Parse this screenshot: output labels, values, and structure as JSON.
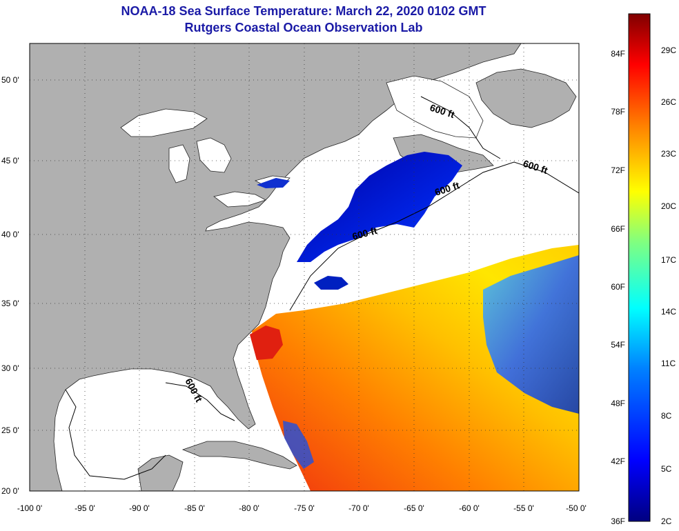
{
  "title": "NOAA-18 Sea Surface Temperature:  March 22, 2020 0102 GMT",
  "subtitle": "Rutgers Coastal Ocean Observation Lab",
  "contour_label": "600 ft",
  "lat_labels": [
    "50 0'",
    "45 0'",
    "40 0'",
    "35 0'",
    "30 0'",
    "25 0'",
    "20 0'"
  ],
  "lon_labels": [
    "-100 0'",
    "-95 0'",
    "-90 0'",
    "-85 0'",
    "-80 0'",
    "-75 0'",
    "-70 0'",
    "-65 0'",
    "-60 0'",
    "-55 0'",
    "-50 0'"
  ],
  "colorbar": {
    "f_labels": [
      "84F",
      "78F",
      "72F",
      "66F",
      "60F",
      "54F",
      "48F",
      "42F",
      "36F"
    ],
    "c_labels": [
      "29C",
      "26C",
      "23C",
      "20C",
      "17C",
      "14C",
      "11C",
      "8C",
      "5C",
      "2C"
    ]
  },
  "colors": {
    "land": "#b0b0b0",
    "title": "#1a1aa6",
    "cold": "#00008f",
    "warm": "#e02000"
  }
}
